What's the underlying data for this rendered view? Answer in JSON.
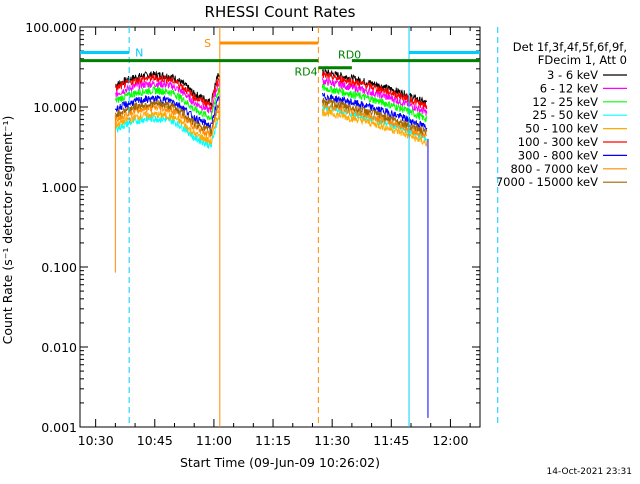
{
  "chart_data": {
    "type": "line",
    "title": "RHESSI Count Rates",
    "xlabel": "Start Time (09-Jun-09 10:26:02)",
    "ylabel": "Count Rate (s⁻¹ detector segment⁻¹)",
    "x_ticks": [
      "10:30",
      "10:45",
      "11:00",
      "11:15",
      "11:30",
      "11:45",
      "12:00"
    ],
    "x_tick_minutes": [
      30,
      45,
      60,
      75,
      90,
      105,
      120
    ],
    "xlim_minutes": [
      26.03,
      127.5
    ],
    "ylim": [
      0.001,
      100
    ],
    "yscale": "log",
    "y_ticks": [
      0.001,
      0.01,
      0.1,
      1,
      10,
      100
    ],
    "y_tick_labels": [
      "0.001",
      "0.010",
      "0.100",
      "1.000",
      "10.000",
      "100.000"
    ],
    "legend_header": [
      "Det 1f,3f,4f,5f,6f,9f,",
      "FDecim 1, Att 0"
    ],
    "legend_placement": "right",
    "series": [
      {
        "name": "3 - 6 keV",
        "color": "#000000",
        "base": 22
      },
      {
        "name": "6 - 12 keV",
        "color": "#ff00ff",
        "base": 17
      },
      {
        "name": "12 - 25 keV",
        "color": "#00ff00",
        "base": 14
      },
      {
        "name": "25 - 50 keV",
        "color": "#00ffff",
        "base": 8
      },
      {
        "name": "50 - 100 keV",
        "color": "#ffaa00",
        "base": 7
      },
      {
        "name": "100 - 300 keV",
        "color": "#ff0000",
        "base": 20
      },
      {
        "name": "300 - 800 keV",
        "color": "#0000ff",
        "base": 11
      },
      {
        "name": "800 - 7000 keV",
        "color": "#ff8c00",
        "base": 8.5
      },
      {
        "name": "7000 - 15000 keV",
        "color": "#a06400",
        "base": 9.5
      }
    ],
    "segments_minutes": [
      [
        35,
        61.5
      ],
      [
        87.5,
        114
      ]
    ],
    "annotations": [
      {
        "text": "N",
        "color": "#00ccff",
        "x_minutes": 38.5
      },
      {
        "text": "S",
        "color": "#ff8c00",
        "x_minutes": 60.8
      },
      {
        "text": "RD0",
        "color": "#008000",
        "x_minutes": 92
      },
      {
        "text": "RD4",
        "color": "#008000",
        "x_minutes": 84.5
      }
    ],
    "night_intervals_minutes": [
      [
        26.03,
        38.5
      ],
      [
        109.5,
        127.5
      ]
    ],
    "saa_interval_minutes": [
      61.5,
      86.5
    ],
    "attenuator_bar_minutes": [
      [
        26.03,
        86.5
      ],
      [
        95,
        127.5
      ]
    ],
    "grid": false
  },
  "timestamp": "14-Oct-2021 23:31"
}
